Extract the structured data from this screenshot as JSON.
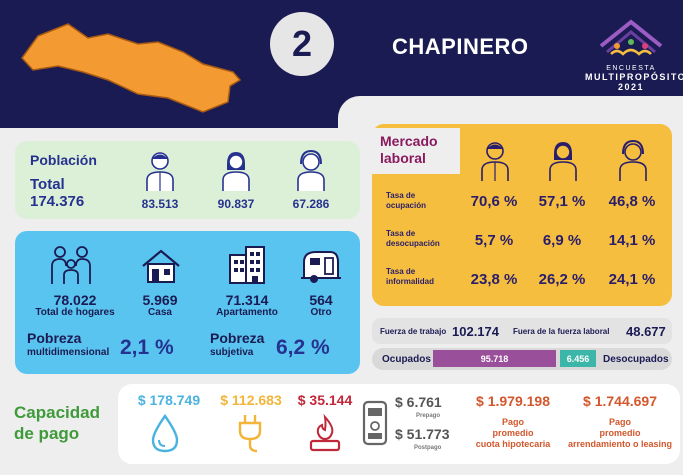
{
  "header": {
    "district_number": "2",
    "district_name": "CHAPINERO",
    "logo": {
      "line1": "ENCUESTA",
      "line2": "MULTIPROPÓSITO",
      "line3": "2021"
    }
  },
  "poblacion": {
    "title": "Población",
    "total_label": "Total",
    "total": "174.376",
    "men": "83.513",
    "women": "90.837",
    "other": "67.286"
  },
  "hogares": {
    "total": "78.022",
    "total_label": "Total de hogares",
    "casa": "5.969",
    "casa_label": "Casa",
    "apartamento": "71.314",
    "apartamento_label": "Apartamento",
    "otro": "564",
    "otro_label": "Otro",
    "pobreza_multi_title": "Pobreza",
    "pobreza_multi_sub": "multidimensional",
    "pobreza_multi_val": "2,1 %",
    "pobreza_subj_title": "Pobreza",
    "pobreza_subj_sub": "subjetiva",
    "pobreza_subj_val": "6,2 %"
  },
  "mercado": {
    "title_line1": "Mercado",
    "title_line2": "laboral",
    "rows": [
      {
        "label1": "Tasa de",
        "label2": "ocupación",
        "v1": "70,6 %",
        "v2": "57,1 %",
        "v3": "46,8 %"
      },
      {
        "label1": "Tasa de",
        "label2": "desocupación",
        "v1": "5,7 %",
        "v2": "6,9 %",
        "v3": "14,1 %"
      },
      {
        "label1": "Tasa de",
        "label2": "informalidad",
        "v1": "23,8 %",
        "v2": "26,2 %",
        "v3": "24,1 %"
      }
    ]
  },
  "fuerza": {
    "trabajo_label": "Fuerza de trabajo",
    "trabajo_val": "102.174",
    "fuera_label": "Fuera de la fuerza laboral",
    "fuera_val": "48.677",
    "ocupados_label": "Ocupados",
    "ocupados_val": "95.718",
    "desocupados_label": "Desocupados",
    "desocupados_val": "6.456",
    "ocupados_share": 0.937
  },
  "capacidad": {
    "title_line1": "Capacidad",
    "title_line2": "de pago",
    "agua": "$ 178.749",
    "energia": "$ 112.683",
    "gas": "$ 35.144",
    "prepago_val": "$ 6.761",
    "prepago_lbl": "Prepago",
    "postpago_val": "$ 51.773",
    "postpago_lbl": "Postpago",
    "hipoteca_val": "$ 1.979.198",
    "hipoteca_lbl1": "Pago",
    "hipoteca_lbl2": "promedio",
    "hipoteca_lbl3": "cuota hipotecaria",
    "arriendo_val": "$ 1.744.697",
    "arriendo_lbl1": "Pago",
    "arriendo_lbl2": "promedio",
    "arriendo_lbl3": "arrendamiento o leasing"
  },
  "colors": {
    "navy": "#1b1b53",
    "orange": "#f39a32",
    "yellow": "#f5be3f",
    "sky": "#59c4f0",
    "mint": "#dcefd7",
    "water": "#4bb3e0",
    "energy": "#f2b53a",
    "gas": "#c0283a",
    "payment": "#d2572c",
    "green": "#3f9a3a",
    "ocupados": "#9a4f9a",
    "desocupados": "#3cb6a8"
  }
}
